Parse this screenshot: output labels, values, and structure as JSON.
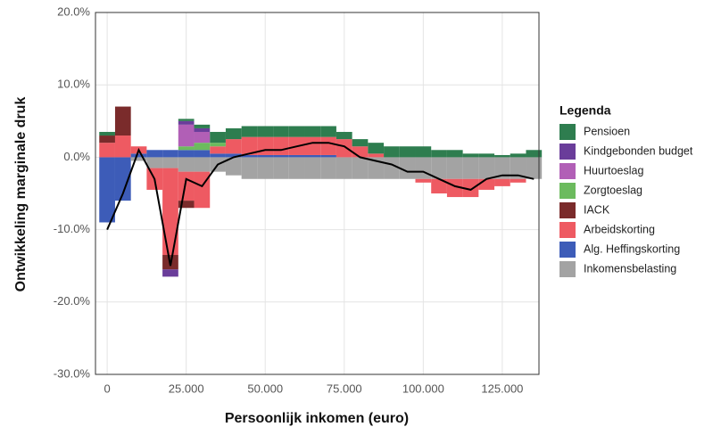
{
  "chart_data": {
    "type": "stacked-bar",
    "x_label": "Persoonlijk inkomen (euro)",
    "y_label": "Ontwikkeling marginale druk",
    "legend_title": "Legenda",
    "x": [
      0,
      5000,
      10000,
      15000,
      20000,
      25000,
      30000,
      35000,
      40000,
      45000,
      50000,
      55000,
      60000,
      65000,
      70000,
      75000,
      80000,
      85000,
      90000,
      95000,
      100000,
      105000,
      110000,
      115000,
      120000,
      125000,
      130000,
      135000
    ],
    "series": [
      {
        "name": "Inkomensbelasting",
        "color": "#a3a3a3",
        "values": [
          0,
          0,
          -0.5,
          -1.5,
          -1.5,
          -2,
          -2,
          -2,
          -2.5,
          -3,
          -3,
          -3,
          -3,
          -3,
          -3,
          -3,
          -3,
          -3,
          -3,
          -3,
          -3,
          -3,
          -3,
          -3,
          -3,
          -3,
          -3,
          -3
        ]
      },
      {
        "name": "Alg. Heffingskorting",
        "color": "#3d5cb8",
        "values": [
          -9,
          -6,
          0.5,
          1,
          1,
          1,
          1,
          0.5,
          0.5,
          0.3,
          0.3,
          0.3,
          0.3,
          0.3,
          0.3,
          0,
          0,
          0,
          0,
          0,
          0,
          0,
          0,
          0,
          0,
          0,
          0,
          0
        ]
      },
      {
        "name": "Arbeidskorting",
        "color": "#ee5a62",
        "values": [
          2,
          3,
          1,
          -3,
          -12,
          -4,
          -5,
          1,
          2,
          2.5,
          2.5,
          2.5,
          2.5,
          2.5,
          2.5,
          2.5,
          1.5,
          0.5,
          0,
          0,
          -0.5,
          -2,
          -2.5,
          -2.5,
          -1.5,
          -1,
          -0.5,
          0
        ]
      },
      {
        "name": "IACK",
        "color": "#7a2b2b",
        "values": [
          1,
          4,
          0,
          0,
          -2,
          -1,
          0,
          0,
          0,
          0,
          0,
          0,
          0,
          0,
          0,
          0,
          0,
          0,
          0,
          0,
          0,
          0,
          0,
          0,
          0,
          0,
          0,
          0
        ]
      },
      {
        "name": "Zorgtoeslag",
        "color": "#6cbb5e",
        "values": [
          0,
          0,
          0,
          0,
          0,
          0.5,
          1,
          0.5,
          0,
          0,
          0,
          0,
          0,
          0,
          0,
          0,
          0,
          0,
          0,
          0,
          0,
          0,
          0,
          0,
          0,
          0,
          0,
          0
        ]
      },
      {
        "name": "Huurtoeslag",
        "color": "#b15fb6",
        "values": [
          0,
          0,
          0,
          0,
          0,
          3,
          1.5,
          0,
          0,
          0,
          0,
          0,
          0,
          0,
          0,
          0,
          0,
          0,
          0,
          0,
          0,
          0,
          0,
          0,
          0,
          0,
          0,
          0
        ]
      },
      {
        "name": "Kindgebonden budget",
        "color": "#6a3d9a",
        "values": [
          0,
          0,
          0,
          0,
          -1,
          0.5,
          0.5,
          0,
          0,
          0,
          0,
          0,
          0,
          0,
          0,
          0,
          0,
          0,
          0,
          0,
          0,
          0,
          0,
          0,
          0,
          0,
          0,
          0
        ]
      },
      {
        "name": "Pensioen",
        "color": "#2e7d4f",
        "values": [
          0.5,
          0,
          0,
          0,
          0,
          0.3,
          0.5,
          1.5,
          1.5,
          1.5,
          1.5,
          1.5,
          1.5,
          1.5,
          1.5,
          1,
          1,
          1.5,
          1.5,
          1.5,
          1.5,
          1,
          1,
          0.5,
          0.5,
          0.3,
          0.5,
          1
        ]
      }
    ],
    "line": {
      "color": "#000000",
      "values": [
        -10,
        -5,
        1,
        -3,
        -15,
        -3,
        -4,
        -1,
        0,
        0.5,
        1,
        1,
        1.5,
        2,
        2,
        1.5,
        0,
        -0.5,
        -1,
        -2,
        -2,
        -3,
        -4,
        -4.5,
        -3,
        -2.5,
        -2.5,
        -3
      ]
    },
    "xlim": [
      -3700,
      136600
    ],
    "ylim": [
      -30,
      20
    ],
    "xticks": [
      0,
      {
        "value": 25000,
        "label": "25.000"
      },
      {
        "value": 50000,
        "label": "50.000"
      },
      {
        "value": 75000,
        "label": "75.000"
      },
      {
        "value": 100000,
        "label": "100.000"
      },
      {
        "value": 125000,
        "label": "125.000"
      }
    ],
    "yticks": [
      {
        "value": -30,
        "label": "-30.0%"
      },
      {
        "value": -20,
        "label": "-20.0%"
      },
      {
        "value": -10,
        "label": "-10.0%"
      },
      {
        "value": 0,
        "label": "0.0%"
      },
      {
        "value": 10,
        "label": "10.0%"
      },
      {
        "value": 20,
        "label": "20.0%"
      }
    ],
    "grid": true
  }
}
